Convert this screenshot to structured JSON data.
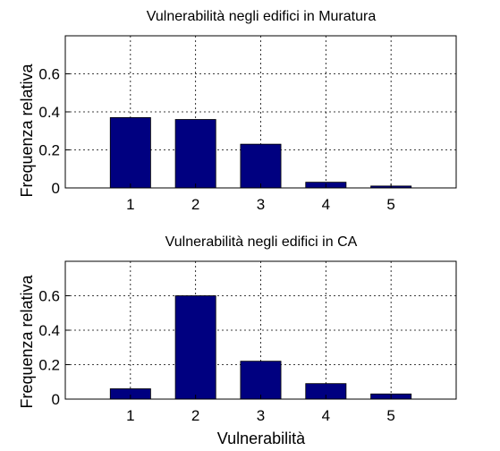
{
  "chart_data": [
    {
      "type": "bar",
      "title": "Vulnerabilità negli edifici in Muratura",
      "xlabel": "",
      "ylabel": "Frequenza relativa",
      "categories": [
        "1",
        "2",
        "3",
        "4",
        "5"
      ],
      "values": [
        0.37,
        0.36,
        0.23,
        0.03,
        0.01
      ],
      "ylim": [
        0,
        0.8
      ],
      "yticks": [
        "0",
        "0.2",
        "0.4",
        "0.6"
      ],
      "ytick_values": [
        0,
        0.2,
        0.4,
        0.6
      ],
      "grid": true,
      "bar_color": "#000080"
    },
    {
      "type": "bar",
      "title": "Vulnerabilità negli edifici in CA",
      "xlabel": "Vulnerabilità",
      "ylabel": "Frequenza relativa",
      "categories": [
        "1",
        "2",
        "3",
        "4",
        "5"
      ],
      "values": [
        0.06,
        0.6,
        0.22,
        0.09,
        0.03
      ],
      "ylim": [
        0,
        0.8
      ],
      "yticks": [
        "0",
        "0.2",
        "0.4",
        "0.6"
      ],
      "ytick_values": [
        0,
        0.2,
        0.4,
        0.6
      ],
      "grid": true,
      "bar_color": "#000080"
    }
  ]
}
